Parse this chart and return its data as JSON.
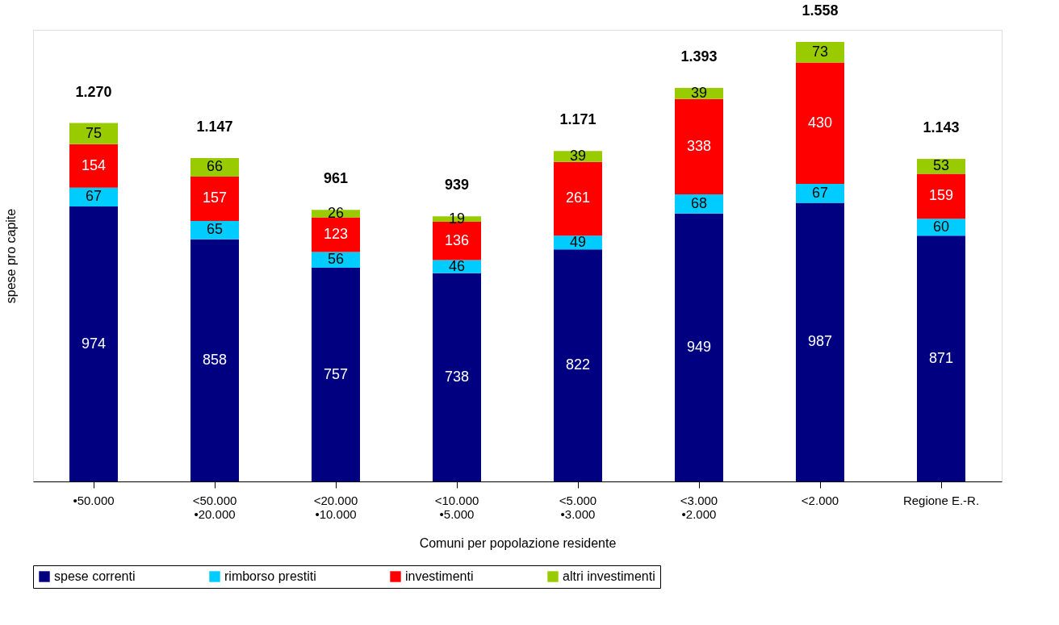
{
  "chart_data": {
    "type": "bar",
    "stacked": true,
    "xlabel": "Comuni per popolazione residente",
    "ylabel": "spese pro capite",
    "categories": [
      "•50.000",
      "<50.000\n•20.000",
      "<20.000\n•10.000",
      "<10.000\n•5.000",
      "<5.000\n•3.000",
      "<3.000\n•2.000",
      "<2.000",
      "Regione E.-R."
    ],
    "series": [
      {
        "name": "spese correnti",
        "color": "#000080",
        "values": [
          974,
          858,
          757,
          738,
          822,
          949,
          987,
          871
        ]
      },
      {
        "name": "rimborso prestiti",
        "color": "#00ccff",
        "values": [
          67,
          65,
          56,
          46,
          49,
          68,
          67,
          60
        ]
      },
      {
        "name": "investimenti",
        "color": "#ff0000",
        "values": [
          154,
          157,
          123,
          136,
          261,
          338,
          430,
          159
        ]
      },
      {
        "name": "altri investimenti",
        "color": "#99cc00",
        "values": [
          75,
          66,
          26,
          19,
          39,
          39,
          73,
          53
        ]
      }
    ],
    "totals": [
      "1.270",
      "1.147",
      "961",
      "939",
      "1.171",
      "1.393",
      "1.558",
      "1.143"
    ],
    "data_labels": true,
    "legend": "bottom",
    "grid": false
  }
}
